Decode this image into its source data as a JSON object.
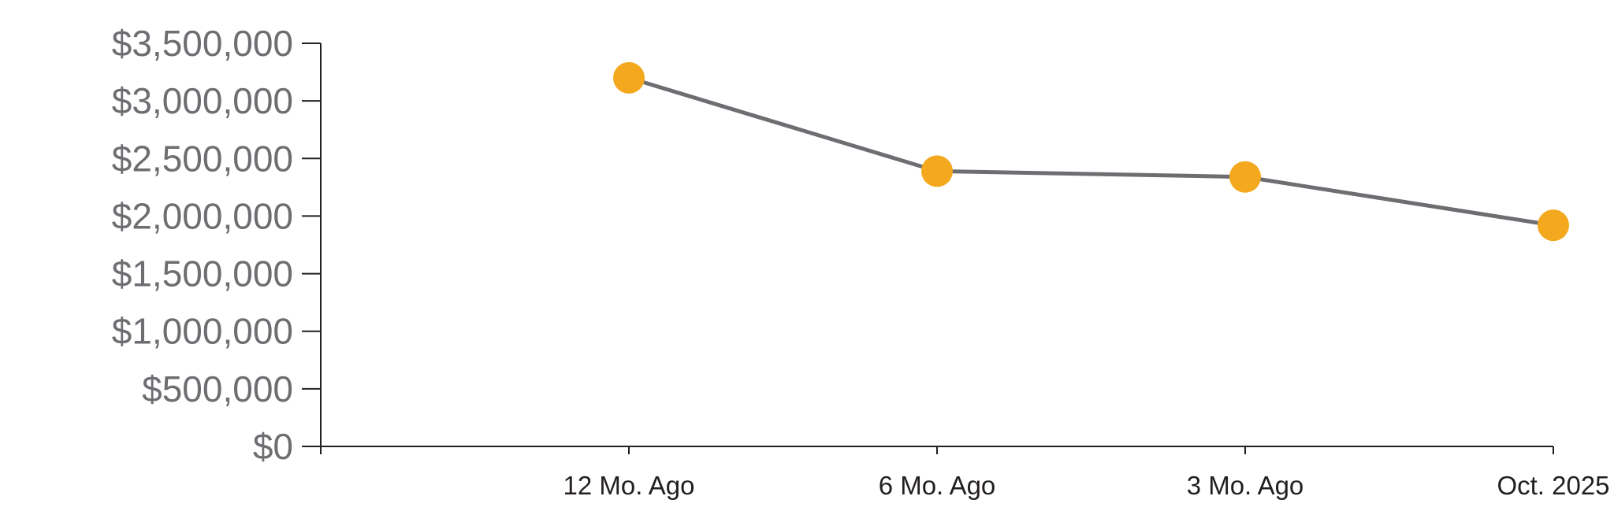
{
  "chart_data": {
    "type": "line",
    "categories": [
      "12 Mo. Ago",
      "6 Mo. Ago",
      "3 Mo. Ago",
      "Oct. 2025"
    ],
    "values": [
      3200000,
      2390000,
      2340000,
      1920000
    ],
    "y_tick_labels": [
      "$0",
      "$500,000",
      "$1,000,000",
      "$1,500,000",
      "$2,000,000",
      "$2,500,000",
      "$3,000,000",
      "$3,500,000"
    ],
    "y_tick_step": 500000,
    "ylim": [
      0,
      3500000
    ],
    "title": "",
    "xlabel": "",
    "ylabel": "",
    "grid": false,
    "legend": "none",
    "colors": {
      "marker": "#F4A81E",
      "line": "#6D6E71",
      "axis": "#231F20",
      "y_tick_label": "#6D6E71",
      "x_tick_label": "#231F20",
      "background": "#FFFFFF"
    }
  }
}
